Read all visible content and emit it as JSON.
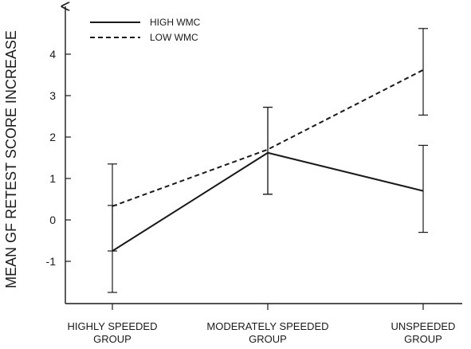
{
  "chart_data": {
    "type": "line",
    "title": "",
    "xlabel": "",
    "ylabel": "MEAN GF RETEST SCORE INCREASE",
    "categories": [
      [
        "HIGHLY SPEEDED",
        "GROUP"
      ],
      [
        "MODERATELY SPEEDED",
        "GROUP"
      ],
      [
        "UNSPEEDED",
        "GROUP"
      ]
    ],
    "yticks": [
      -1,
      0,
      1,
      2,
      3,
      4
    ],
    "ytick_labels": [
      "-1",
      "0",
      "1",
      "2",
      "3",
      "4"
    ],
    "ylim": [
      -2.05,
      4.65
    ],
    "grid": false,
    "legend_position": "top-left",
    "series": [
      {
        "name": "HIGH WMC",
        "line_style": "solid",
        "values": [
          -0.75,
          1.62,
          0.7
        ],
        "error_low": [
          -1.75,
          0.62,
          -0.3
        ],
        "error_high": [
          0.35,
          2.72,
          1.8
        ]
      },
      {
        "name": "LOW WMC",
        "line_style": "dashed",
        "values": [
          0.33,
          1.7,
          3.62
        ],
        "error_low": [
          -0.75,
          0.62,
          2.53
        ],
        "error_high": [
          1.35,
          2.72,
          4.62
        ]
      }
    ]
  }
}
